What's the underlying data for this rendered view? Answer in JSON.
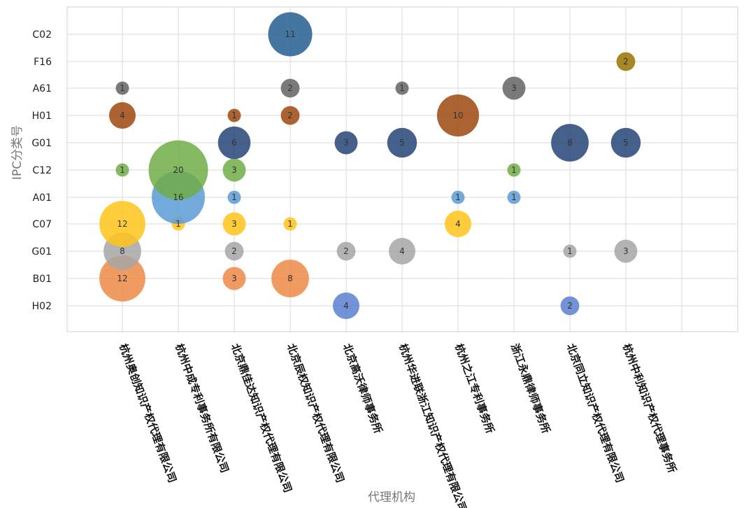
{
  "chart_data": {
    "type": "scatter",
    "subtype": "bubble",
    "xlabel": "代理机构",
    "ylabel": "IPC分类号",
    "grid": true,
    "categories": [
      "杭州奥创知识产权代理有限公司",
      "杭州中成专利事务所有限公司",
      "北京鼎佳达知识产权代理有限公司",
      "北京辰权知识产权代理有限公司",
      "北京高沃律师事务所",
      "杭州华进联浙江知识产权代理有限公司",
      "杭州之江专利事务所",
      "浙江永鼎律师事务所",
      "北京同立知识产权代理有限公司",
      "杭州中利知识产权代理事务所"
    ],
    "y_categories": [
      "H02",
      "B01",
      "G01",
      "C07",
      "A01",
      "C12",
      "G01",
      "H01",
      "A61",
      "F16",
      "C02"
    ],
    "series": [
      {
        "color": "#5B7FD0",
        "y_index": 0,
        "points": [
          [
            4,
            4
          ],
          [
            8,
            2
          ]
        ]
      },
      {
        "color": "#ED8A45",
        "y_index": 1,
        "points": [
          [
            0,
            12
          ],
          [
            2,
            3
          ],
          [
            3,
            8
          ]
        ]
      },
      {
        "color": "#A6A6A6",
        "y_index": 2,
        "points": [
          [
            0,
            8
          ],
          [
            2,
            2
          ],
          [
            4,
            2
          ],
          [
            5,
            4
          ],
          [
            8,
            1
          ],
          [
            9,
            3
          ]
        ]
      },
      {
        "color": "#FFC41A",
        "y_index": 3,
        "points": [
          [
            0,
            12
          ],
          [
            1,
            1
          ],
          [
            2,
            3
          ],
          [
            3,
            1
          ],
          [
            6,
            4
          ]
        ]
      },
      {
        "color": "#5B9BD5",
        "y_index": 4,
        "points": [
          [
            1,
            16
          ],
          [
            2,
            1
          ],
          [
            6,
            1
          ],
          [
            7,
            1
          ]
        ]
      },
      {
        "color": "#70AD47",
        "y_index": 5,
        "points": [
          [
            0,
            1
          ],
          [
            1,
            20
          ],
          [
            2,
            3
          ],
          [
            7,
            1
          ]
        ]
      },
      {
        "color": "#264478",
        "y_index": 6,
        "points": [
          [
            2,
            6
          ],
          [
            4,
            3
          ],
          [
            5,
            5
          ],
          [
            8,
            8
          ],
          [
            9,
            5
          ]
        ]
      },
      {
        "color": "#9E480E",
        "y_index": 7,
        "points": [
          [
            0,
            4
          ],
          [
            2,
            1
          ],
          [
            3,
            2
          ],
          [
            6,
            10
          ]
        ]
      },
      {
        "color": "#636363",
        "y_index": 8,
        "points": [
          [
            0,
            1
          ],
          [
            3,
            2
          ],
          [
            5,
            1
          ],
          [
            7,
            3
          ]
        ]
      },
      {
        "color": "#997300",
        "y_index": 9,
        "points": [
          [
            9,
            2
          ]
        ]
      },
      {
        "color": "#255E91",
        "y_index": 10,
        "points": [
          [
            3,
            11
          ]
        ]
      }
    ]
  }
}
